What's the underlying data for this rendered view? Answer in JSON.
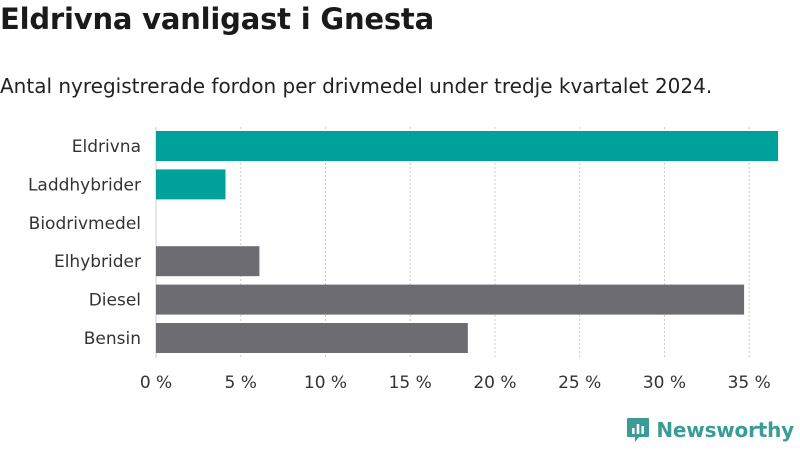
{
  "title": "Eldrivna vanligast i Gnesta",
  "subtitle": "Antal nyregistrerade fordon per drivmedel under tredje kvartalet 2024.",
  "brand": {
    "name": "Newsworthy",
    "color": "#3a9c95"
  },
  "colors": {
    "highlight": "#00a19a",
    "other": "#6d6c72",
    "grid": "#cccccc"
  },
  "chart_data": {
    "type": "bar",
    "orientation": "horizontal",
    "categories": [
      "Eldrivna",
      "Laddhybrider",
      "Biodrivmedel",
      "Elhybrider",
      "Diesel",
      "Bensin"
    ],
    "values": [
      36.7,
      4.1,
      0,
      6.1,
      34.7,
      18.4
    ],
    "highlighted": [
      true,
      true,
      true,
      false,
      false,
      false
    ],
    "xlim": [
      0,
      36.7
    ],
    "xticks": [
      0,
      5,
      10,
      15,
      20,
      25,
      30,
      35
    ],
    "xtick_labels": [
      "0 %",
      "5 %",
      "10 %",
      "15 %",
      "20 %",
      "25 %",
      "30 %",
      "35 %"
    ],
    "grid": "vertical-dashed"
  }
}
